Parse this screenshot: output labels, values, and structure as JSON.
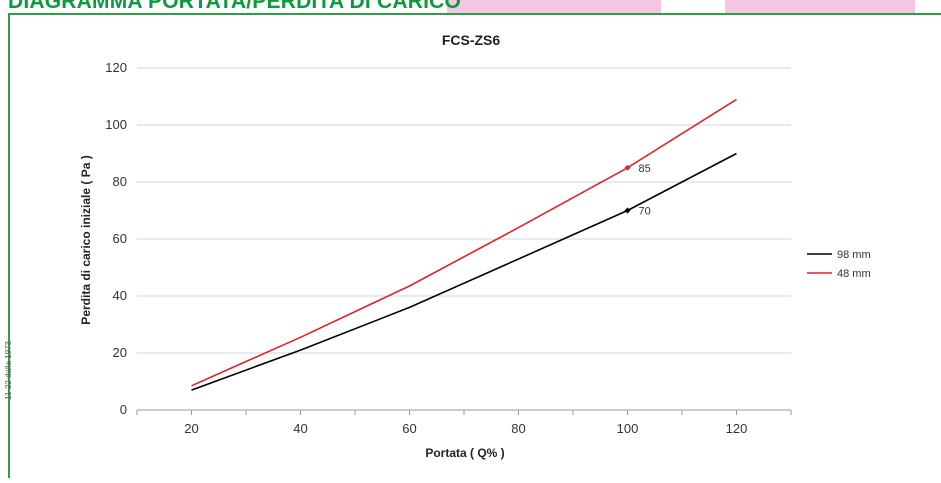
{
  "page": {
    "heading": "DIAGRAMMA PORTATA/PERDITA DI CARICO",
    "side_note": "11-22 dalla 1973"
  },
  "colors": {
    "frame": "#2f9d46",
    "heading": "#0e9a3c",
    "tab": "#f4c6e2"
  },
  "chart_data": {
    "type": "line",
    "title": "FCS-ZS6",
    "xlabel": "Portata ( Q% )",
    "ylabel": "Perdita di carico iniziale ( Pa )",
    "xlim": [
      10,
      130
    ],
    "ylim": [
      0,
      120
    ],
    "xticks": [
      20,
      40,
      60,
      80,
      100,
      120
    ],
    "xticks_minor": [
      30,
      50,
      70,
      90,
      110
    ],
    "yticks": [
      0,
      20,
      40,
      60,
      80,
      100,
      120
    ],
    "grid": true,
    "legend": "right",
    "series": [
      {
        "name": "98 mm",
        "color": "#000000",
        "x": [
          20,
          40,
          60,
          80,
          100,
          120
        ],
        "y": [
          7,
          21,
          36,
          53,
          70,
          90
        ]
      },
      {
        "name": "48 mm",
        "color": "#e0232b",
        "x": [
          20,
          40,
          60,
          80,
          100,
          120
        ],
        "y": [
          8.5,
          25.5,
          43.5,
          64,
          85,
          109
        ]
      }
    ],
    "annotations": [
      {
        "series": 0,
        "x": 100,
        "y": 70,
        "text": "70"
      },
      {
        "series": 1,
        "x": 100,
        "y": 85,
        "text": "85"
      }
    ]
  }
}
